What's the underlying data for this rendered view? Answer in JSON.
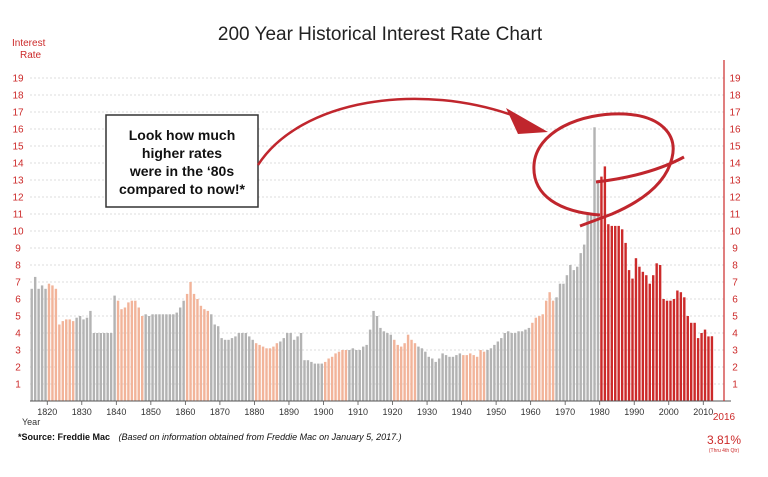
{
  "chart_data": {
    "type": "bar",
    "title": "200 Year Historical Interest Rate Chart",
    "ylabel_line1": "Interest",
    "ylabel_line2": "Rate",
    "xlabel": "Year",
    "ylim": [
      0,
      20
    ],
    "yticks": [
      "1",
      "2",
      "3",
      "4",
      "5",
      "6",
      "7",
      "8",
      "9",
      "10",
      "11",
      "12",
      "13",
      "14",
      "15",
      "16",
      "17",
      "18",
      "19"
    ],
    "xticks": [
      "1820",
      "1830",
      "1840",
      "1850",
      "1860",
      "1870",
      "1880",
      "1890",
      "1900",
      "1910",
      "1920",
      "1930",
      "1940",
      "1950",
      "1960",
      "1970",
      "1980",
      "1990",
      "2000",
      "2010"
    ],
    "grid": true,
    "x_start": 1815,
    "x_end": 2016,
    "values": [
      6.6,
      7.3,
      6.6,
      6.8,
      6.6,
      6.9,
      6.8,
      6.6,
      4.5,
      4.7,
      4.8,
      4.8,
      4.7,
      4.9,
      5.0,
      4.8,
      4.9,
      5.3,
      4.0,
      4.0,
      4.0,
      4.0,
      4.0,
      4.0,
      6.2,
      5.9,
      5.4,
      5.5,
      5.8,
      5.9,
      5.9,
      5.5,
      5.0,
      5.1,
      5.0,
      5.1,
      5.1,
      5.1,
      5.1,
      5.1,
      5.1,
      5.1,
      5.2,
      5.5,
      5.9,
      6.3,
      7.0,
      6.3,
      6.0,
      5.6,
      5.4,
      5.3,
      5.1,
      4.5,
      4.4,
      3.7,
      3.6,
      3.6,
      3.7,
      3.8,
      4.0,
      4.0,
      4.0,
      3.8,
      3.6,
      3.4,
      3.3,
      3.2,
      3.1,
      3.1,
      3.2,
      3.4,
      3.5,
      3.7,
      4.0,
      4.0,
      3.6,
      3.8,
      4.0,
      2.4,
      2.4,
      2.3,
      2.2,
      2.2,
      2.2,
      2.3,
      2.5,
      2.6,
      2.8,
      2.9,
      3.0,
      3.0,
      3.0,
      3.1,
      3.0,
      3.0,
      3.2,
      3.3,
      4.2,
      5.3,
      5.0,
      4.3,
      4.1,
      4.0,
      3.9,
      3.6,
      3.3,
      3.2,
      3.4,
      3.9,
      3.6,
      3.4,
      3.2,
      3.1,
      2.9,
      2.6,
      2.5,
      2.3,
      2.5,
      2.8,
      2.7,
      2.6,
      2.6,
      2.7,
      2.8,
      2.7,
      2.7,
      2.8,
      2.7,
      2.6,
      3.0,
      2.9,
      3.0,
      3.1,
      3.3,
      3.5,
      3.7,
      4.0,
      4.1,
      4.0,
      4.0,
      4.1,
      4.1,
      4.2,
      4.3,
      4.6,
      4.9,
      5.0,
      5.1,
      5.9,
      6.4,
      5.9,
      6.1,
      6.9,
      6.9,
      7.4,
      8.0,
      7.7,
      7.9,
      8.7,
      9.2,
      11.0,
      11.0,
      16.1,
      13.0,
      13.2,
      13.8,
      10.4,
      10.3,
      10.3,
      10.3,
      10.1,
      9.3,
      7.7,
      7.2,
      8.4,
      7.9,
      7.6,
      7.4,
      6.9,
      7.4,
      8.1,
      8.0,
      6.0,
      5.9,
      5.9,
      6.0,
      6.5,
      6.4,
      6.1,
      5.0,
      4.6,
      4.6,
      3.7,
      4.0,
      4.2,
      3.8,
      3.81
    ],
    "annotation": [
      "Look how much",
      "higher rates",
      "were in the ‘80s",
      "compared to now!*"
    ],
    "end_year_label": "2016",
    "end_value_label": "3.81%",
    "end_note": "(Thru 4th Qtr)"
  },
  "source_bold": "*Source: Freddie Mac",
  "source_italic": "(Based on information obtained from Freddie Mac on January 5, 2017.)",
  "colors": {
    "red": "#cc2a2a",
    "peach": "#f2b49a",
    "grey": "#b3b3b3",
    "dark_red": "#c0262d"
  }
}
